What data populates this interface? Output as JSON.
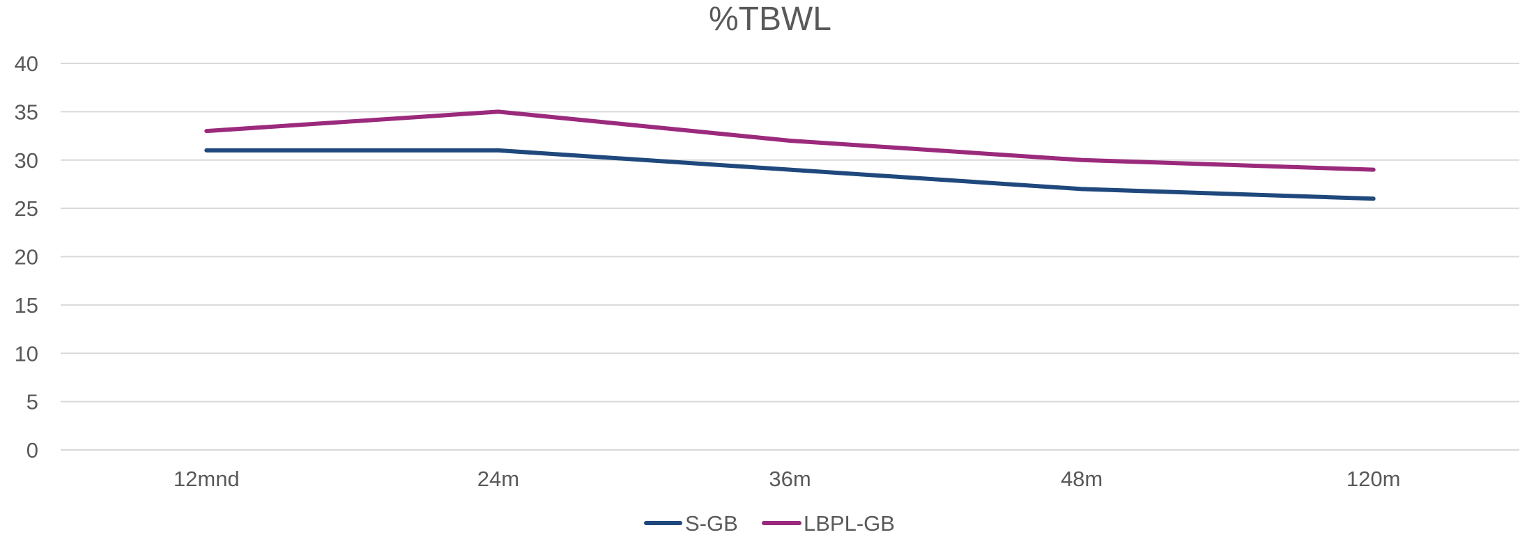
{
  "chart_data": {
    "type": "line",
    "title": "%TBWL",
    "xlabel": "",
    "ylabel": "",
    "categories": [
      "12mnd",
      "24m",
      "36m",
      "48m",
      "120m"
    ],
    "ylim": [
      0,
      40
    ],
    "yticks": [
      0,
      5,
      10,
      15,
      20,
      25,
      30,
      35,
      40
    ],
    "grid": true,
    "legend_position": "bottom",
    "series": [
      {
        "name": "S-GB",
        "color": "#1f497d",
        "values": [
          31,
          31,
          29,
          27,
          26
        ]
      },
      {
        "name": "LBPL-GB",
        "color": "#9b2a7c",
        "values": [
          33,
          35,
          32,
          30,
          29
        ]
      }
    ]
  }
}
